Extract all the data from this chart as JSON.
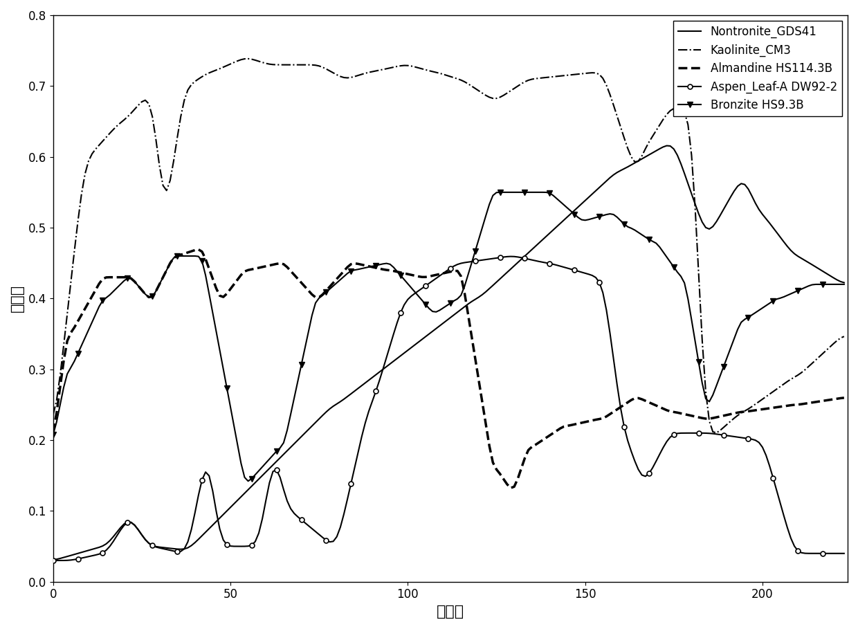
{
  "title": "",
  "xlabel": "波段数",
  "ylabel": "反射率",
  "xlim": [
    0,
    224
  ],
  "ylim": [
    0,
    0.8
  ],
  "xticks": [
    0,
    50,
    100,
    150,
    200
  ],
  "yticks": [
    0,
    0.1,
    0.2,
    0.3,
    0.4,
    0.5,
    0.6,
    0.7,
    0.8
  ],
  "legend_labels": [
    "Nontronite_GDS41",
    "Kaolinite_CM3",
    "Almandine HS114.3B",
    "Aspen_Leaf-A DW92-2",
    "Bronzite HS9.3B"
  ],
  "legend_styles": {
    "Nontronite_GDS41": {
      "linestyle": "-",
      "linewidth": 1.5,
      "marker": null
    },
    "Kaolinite_CM3": {
      "linestyle": "-.",
      "linewidth": 1.5,
      "marker": null
    },
    "Almandine HS114.3B": {
      "linestyle": "--",
      "linewidth": 2.0,
      "marker": null
    },
    "Aspen_Leaf-A DW92-2": {
      "linestyle": "-",
      "linewidth": 1.5,
      "marker": "o"
    },
    "Bronzite HS9.3B": {
      "linestyle": "-",
      "linewidth": 1.5,
      "marker": "v"
    }
  },
  "figsize": [
    12.4,
    9.09
  ],
  "dpi": 100
}
